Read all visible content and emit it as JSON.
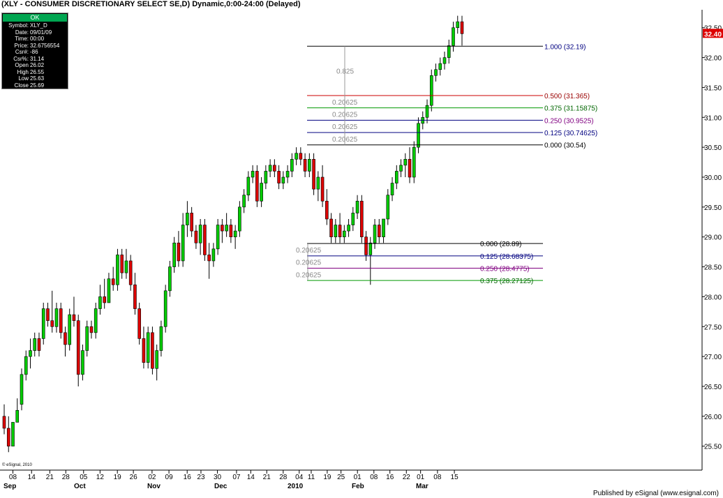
{
  "title": "(XLY - CONSUMER DISCRETIONARY SELECT SE,D) Dynamic,0:00-24:00 (Delayed)",
  "footer": "Published by eSignal (www.esignal.com)",
  "copyright": "© eSignal, 2010",
  "info_box": {
    "status": "OK",
    "rows": [
      {
        "label": "Symbol:",
        "value": "XLY_D"
      },
      {
        "label": "Date:",
        "value": "09/01/09"
      },
      {
        "label": "Time:",
        "value": "00:00"
      },
      {
        "label": "Price:",
        "value": "32.6756554"
      },
      {
        "label": "Csr#:",
        "value": "-86"
      },
      {
        "label": "Csr%:",
        "value": "31.14"
      },
      {
        "label": "Open",
        "value": "26.02"
      },
      {
        "label": "High",
        "value": "26.55"
      },
      {
        "label": "Low",
        "value": "25.63"
      },
      {
        "label": "Close",
        "value": "25.69"
      }
    ]
  },
  "colors": {
    "up": "#00cc00",
    "down": "#dd0000",
    "last_price_bg": "#dd0000"
  },
  "chart_data": {
    "type": "candlestick",
    "yaxis": {
      "min": 25.1,
      "max": 32.8,
      "ticks": [
        "32.50",
        "32.00",
        "31.50",
        "31.00",
        "30.50",
        "30.00",
        "29.50",
        "29.00",
        "28.50",
        "28.00",
        "27.50",
        "27.00",
        "26.50",
        "26.00",
        "25.50"
      ],
      "last_price": "32.40"
    },
    "xaxis": {
      "day_ticks": [
        "08",
        "14",
        "21",
        "28",
        "05",
        "12",
        "19",
        "26",
        "02",
        "09",
        "16",
        "23",
        "30",
        "07",
        "14",
        "21",
        "28",
        "04",
        "11",
        "19",
        "25",
        "01",
        "08",
        "16",
        "22",
        "01",
        "08",
        "15"
      ],
      "month_labels": [
        "Sep",
        "Oct",
        "Nov",
        "Dec",
        "2010",
        "Feb",
        "Mar"
      ]
    },
    "candles": [
      [
        26.0,
        26.2,
        25.7,
        25.8
      ],
      [
        25.8,
        26.0,
        25.4,
        25.5
      ],
      [
        25.5,
        25.9,
        25.5,
        25.9
      ],
      [
        25.9,
        26.3,
        25.9,
        26.1
      ],
      [
        26.2,
        26.8,
        26.1,
        26.7
      ],
      [
        26.7,
        27.1,
        26.6,
        27.0
      ],
      [
        27.0,
        27.3,
        26.8,
        27.1
      ],
      [
        27.1,
        27.4,
        27.0,
        27.3
      ],
      [
        27.3,
        27.4,
        27.0,
        27.1
      ],
      [
        27.3,
        27.9,
        27.2,
        27.8
      ],
      [
        27.8,
        27.9,
        27.5,
        27.6
      ],
      [
        27.6,
        28.1,
        27.4,
        27.5
      ],
      [
        27.5,
        27.9,
        27.4,
        27.8
      ],
      [
        27.8,
        27.9,
        27.3,
        27.4
      ],
      [
        27.4,
        27.5,
        27.0,
        27.2
      ],
      [
        27.2,
        27.8,
        27.1,
        27.7
      ],
      [
        27.7,
        28.0,
        27.5,
        27.6
      ],
      [
        27.6,
        27.7,
        26.5,
        26.7
      ],
      [
        26.7,
        27.2,
        26.6,
        27.1
      ],
      [
        27.1,
        27.6,
        27.0,
        27.5
      ],
      [
        27.5,
        27.6,
        27.3,
        27.4
      ],
      [
        27.4,
        27.9,
        27.3,
        27.8
      ],
      [
        27.8,
        28.2,
        27.7,
        28.0
      ],
      [
        28.0,
        28.3,
        27.8,
        27.9
      ],
      [
        27.9,
        28.4,
        27.9,
        28.3
      ],
      [
        28.3,
        28.5,
        28.1,
        28.2
      ],
      [
        28.2,
        28.8,
        28.1,
        28.7
      ],
      [
        28.7,
        28.8,
        28.3,
        28.4
      ],
      [
        28.4,
        28.8,
        28.3,
        28.6
      ],
      [
        28.6,
        28.7,
        28.1,
        28.2
      ],
      [
        28.2,
        28.4,
        27.7,
        27.8
      ],
      [
        27.8,
        27.9,
        27.2,
        27.3
      ],
      [
        27.3,
        27.5,
        26.8,
        26.9
      ],
      [
        26.9,
        27.5,
        26.8,
        27.4
      ],
      [
        27.4,
        27.5,
        26.7,
        26.8
      ],
      [
        26.8,
        27.2,
        26.6,
        27.1
      ],
      [
        27.1,
        27.6,
        27.0,
        27.5
      ],
      [
        27.5,
        28.2,
        27.4,
        28.1
      ],
      [
        28.1,
        28.6,
        28.0,
        28.5
      ],
      [
        28.5,
        29.0,
        28.4,
        28.9
      ],
      [
        28.9,
        29.1,
        28.5,
        28.6
      ],
      [
        28.6,
        29.4,
        28.5,
        29.2
      ],
      [
        29.2,
        29.6,
        29.0,
        29.4
      ],
      [
        29.4,
        29.5,
        29.0,
        29.1
      ],
      [
        29.1,
        29.2,
        28.8,
        28.9
      ],
      [
        28.9,
        29.3,
        28.7,
        29.2
      ],
      [
        29.2,
        29.3,
        28.6,
        28.7
      ],
      [
        28.7,
        28.9,
        28.3,
        28.6
      ],
      [
        28.6,
        28.9,
        28.5,
        28.8
      ],
      [
        28.8,
        29.3,
        28.7,
        29.2
      ],
      [
        29.2,
        29.3,
        28.9,
        29.1
      ],
      [
        29.1,
        29.4,
        29.0,
        29.2
      ],
      [
        29.2,
        29.3,
        28.9,
        29.0
      ],
      [
        29.0,
        29.2,
        28.8,
        29.1
      ],
      [
        29.1,
        29.6,
        29.0,
        29.5
      ],
      [
        29.5,
        29.8,
        29.4,
        29.7
      ],
      [
        29.7,
        30.1,
        29.6,
        30.0
      ],
      [
        30.0,
        30.2,
        29.9,
        30.1
      ],
      [
        30.1,
        30.2,
        29.5,
        29.6
      ],
      [
        29.6,
        30.0,
        29.5,
        29.9
      ],
      [
        29.9,
        30.2,
        29.8,
        30.1
      ],
      [
        30.1,
        30.3,
        30.0,
        30.2
      ],
      [
        30.2,
        30.3,
        30.0,
        30.1
      ],
      [
        30.1,
        30.2,
        29.8,
        29.9
      ],
      [
        29.9,
        30.1,
        29.8,
        30.0
      ],
      [
        30.0,
        30.2,
        29.9,
        30.1
      ],
      [
        30.1,
        30.4,
        30.0,
        30.3
      ],
      [
        30.3,
        30.5,
        30.2,
        30.4
      ],
      [
        30.4,
        30.5,
        30.2,
        30.3
      ],
      [
        30.3,
        30.4,
        30.0,
        30.1
      ],
      [
        30.1,
        30.4,
        30.0,
        30.3
      ],
      [
        30.3,
        30.4,
        29.7,
        29.8
      ],
      [
        29.8,
        30.1,
        29.6,
        30.0
      ],
      [
        30.0,
        30.2,
        29.5,
        29.6
      ],
      [
        29.6,
        29.8,
        29.2,
        29.3
      ],
      [
        29.3,
        29.4,
        28.9,
        29.0
      ],
      [
        29.0,
        29.3,
        28.9,
        29.2
      ],
      [
        29.2,
        29.4,
        28.9,
        29.0
      ],
      [
        29.0,
        29.2,
        28.9,
        29.1
      ],
      [
        29.1,
        29.3,
        29.0,
        29.2
      ],
      [
        29.2,
        29.5,
        29.1,
        29.4
      ],
      [
        29.4,
        29.7,
        29.3,
        29.6
      ],
      [
        29.6,
        29.7,
        28.9,
        29.0
      ],
      [
        29.0,
        29.1,
        28.6,
        28.7
      ],
      [
        28.7,
        29.0,
        28.2,
        28.9
      ],
      [
        28.9,
        29.3,
        28.8,
        29.2
      ],
      [
        29.2,
        29.3,
        28.9,
        29.0
      ],
      [
        29.0,
        29.3,
        28.9,
        29.3
      ],
      [
        29.3,
        29.8,
        29.2,
        29.7
      ],
      [
        29.7,
        30.0,
        29.6,
        29.9
      ],
      [
        29.9,
        30.2,
        29.8,
        30.1
      ],
      [
        30.1,
        30.3,
        30.0,
        30.2
      ],
      [
        30.2,
        30.4,
        30.0,
        30.3
      ],
      [
        30.3,
        30.5,
        29.9,
        30.0
      ],
      [
        30.0,
        30.6,
        29.9,
        30.5
      ],
      [
        30.5,
        31.0,
        30.4,
        30.9
      ],
      [
        30.9,
        31.1,
        30.8,
        31.0
      ],
      [
        31.0,
        31.3,
        30.9,
        31.2
      ],
      [
        31.2,
        31.8,
        31.1,
        31.7
      ],
      [
        31.7,
        31.9,
        31.6,
        31.8
      ],
      [
        31.8,
        32.0,
        31.7,
        31.9
      ],
      [
        31.9,
        32.1,
        31.8,
        32.0
      ],
      [
        32.0,
        32.3,
        31.9,
        32.2
      ],
      [
        32.2,
        32.6,
        32.1,
        32.5
      ],
      [
        32.5,
        32.7,
        32.4,
        32.6
      ],
      [
        32.6,
        32.7,
        32.2,
        32.4
      ]
    ],
    "fib_upper": {
      "range_label": "0.825",
      "levels": [
        {
          "ratio": "1.000",
          "price": 32.19,
          "label": "1.000 (32.19)",
          "color": "#000080",
          "line": "#000000",
          "step": ""
        },
        {
          "ratio": "0.500",
          "price": 31.365,
          "label": "0.500 (31.365)",
          "color": "#990000",
          "line": "#cc0000",
          "step": ""
        },
        {
          "ratio": "0.375",
          "price": 31.15875,
          "label": "0.375 (31.15875)",
          "color": "#006600",
          "line": "#009900",
          "step": "0.20625"
        },
        {
          "ratio": "0.250",
          "price": 30.9525,
          "label": "0.250 (30.9525)",
          "color": "#800080",
          "line": "#000080",
          "step": "0.20625"
        },
        {
          "ratio": "0.125",
          "price": 30.74625,
          "label": "0.125 (30.74625)",
          "color": "#000080",
          "line": "#000080",
          "step": "0.20625"
        },
        {
          "ratio": "0.000",
          "price": 30.54,
          "label": "0.000 (30.54)",
          "color": "#000000",
          "line": "#000000",
          "step": "0.20625"
        }
      ]
    },
    "fib_lower": {
      "levels": [
        {
          "ratio": "0.000",
          "price": 28.89,
          "label": "0.000 (28.89)",
          "color": "#000000",
          "line": "#000000",
          "step": ""
        },
        {
          "ratio": "0.125",
          "price": 28.68375,
          "label": "0.125 (28.68375)",
          "color": "#000080",
          "line": "#000080",
          "step": "0.20625"
        },
        {
          "ratio": "0.250",
          "price": 28.4775,
          "label": "0.250 (28.4775)",
          "color": "#800080",
          "line": "#800080",
          "step": "0.20625"
        },
        {
          "ratio": "0.375",
          "price": 28.27125,
          "label": "0.375 (28.27125)",
          "color": "#006600",
          "line": "#009900",
          "step": "0.20625"
        }
      ]
    }
  }
}
